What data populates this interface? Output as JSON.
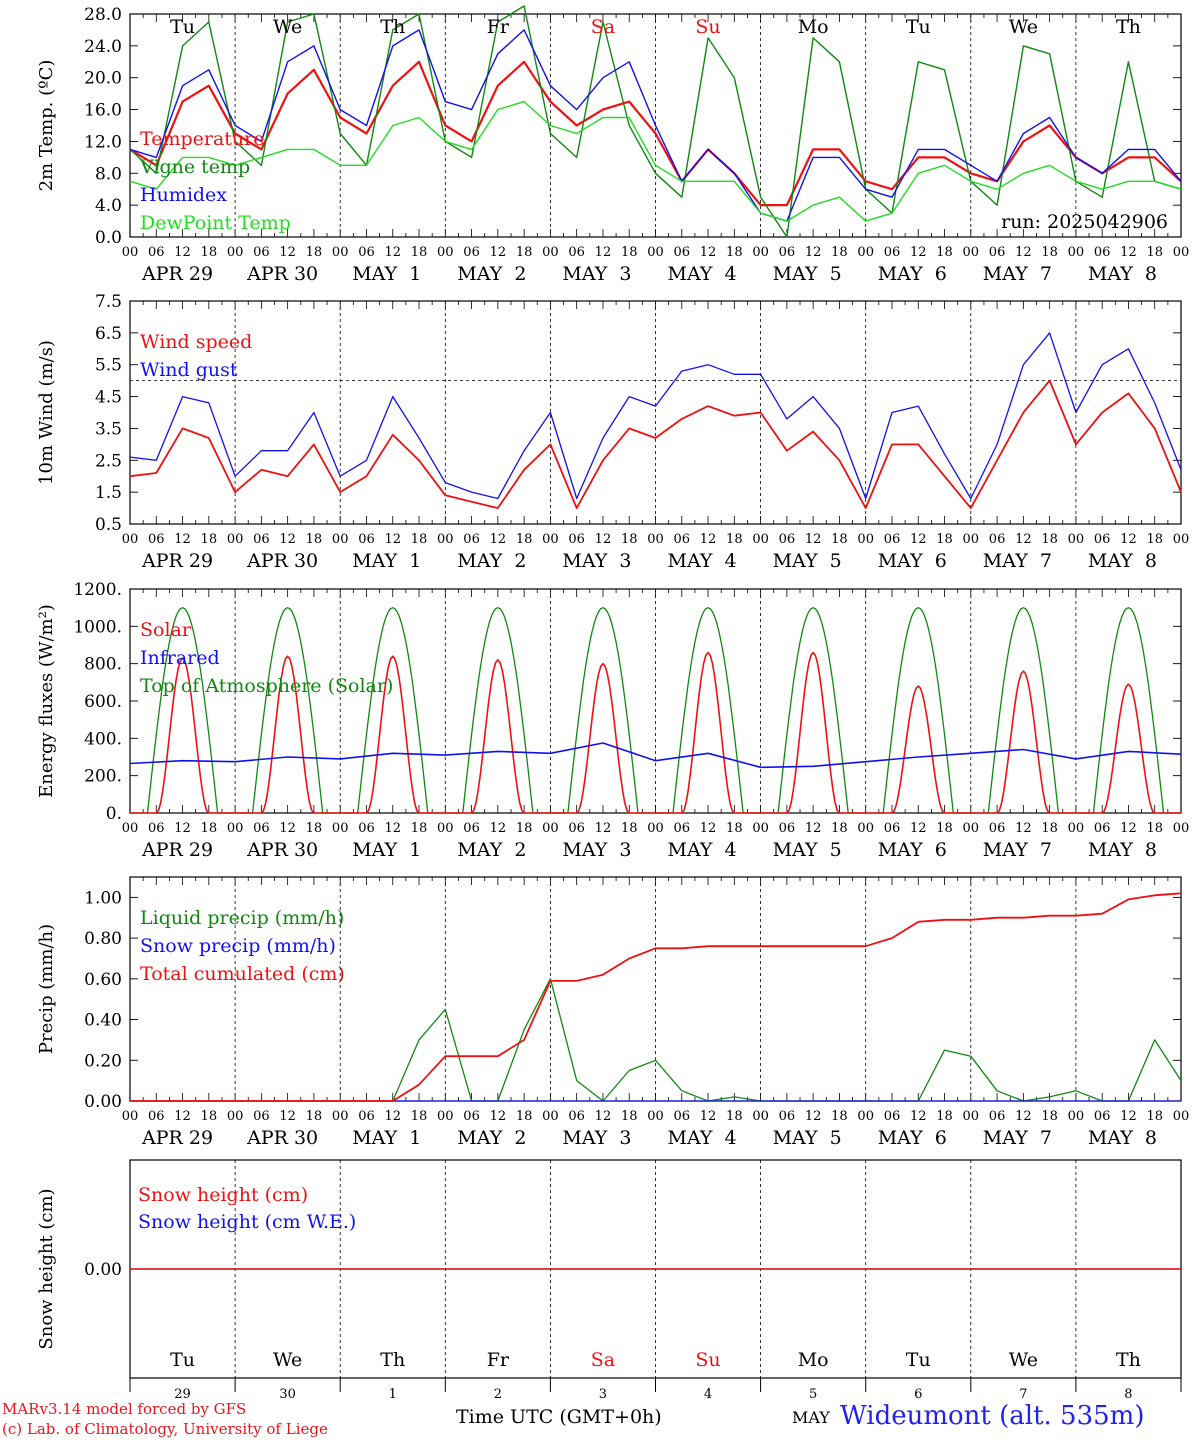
{
  "chart_data": [
    {
      "type": "line",
      "ylabel": "2m Temp. (ºC)",
      "ylim": [
        0,
        28
      ],
      "yticks": [
        "0.0",
        "4.0",
        "8.0",
        "12.0",
        "16.0",
        "20.0",
        "24.0",
        "28.0"
      ],
      "annotation": "run: 2025042906",
      "day_names": [
        "Tu",
        "We",
        "Th",
        "Fr",
        "Sa",
        "Su",
        "Mo",
        "Tu",
        "We",
        "Th"
      ],
      "date_labels": [
        "APR 29",
        "APR 30",
        "MAY  1",
        "MAY  2",
        "MAY  3",
        "MAY  4",
        "MAY  5",
        "MAY  6",
        "MAY  7",
        "MAY  8"
      ],
      "hour_ticks": [
        "00",
        "06",
        "12",
        "18"
      ],
      "x_hours": [
        0,
        6,
        12,
        18,
        24,
        30,
        36,
        42,
        48,
        54,
        60,
        66,
        72,
        78,
        84,
        90,
        96,
        102,
        108,
        114,
        120,
        126,
        132,
        138,
        144,
        150,
        156,
        162,
        168,
        174,
        180,
        186,
        192,
        198,
        204,
        210,
        216,
        222,
        228,
        234,
        240
      ],
      "series": [
        {
          "name": "Temperature",
          "color": "#ee1111",
          "values": [
            11,
            9,
            17,
            19,
            13,
            11,
            18,
            21,
            15,
            13,
            19,
            22,
            14,
            12,
            19,
            22,
            17,
            14,
            16,
            17,
            13,
            7,
            11,
            8,
            4,
            4,
            11,
            11,
            7,
            6,
            10,
            10,
            8,
            7,
            12,
            14,
            10,
            8,
            10,
            10,
            7
          ]
        },
        {
          "name": "Vigne temp",
          "color": "#118811",
          "values": [
            11,
            8,
            24,
            27,
            12,
            9,
            27,
            28,
            13,
            9,
            26,
            28,
            12,
            10,
            27,
            29,
            13,
            10,
            27,
            14,
            8,
            5,
            25,
            20,
            5,
            0,
            25,
            22,
            6,
            3,
            22,
            21,
            7,
            4,
            24,
            23,
            7,
            5,
            22,
            7,
            6
          ]
        },
        {
          "name": "Humidex",
          "color": "#1111ee",
          "values": [
            11,
            10,
            19,
            21,
            14,
            12,
            22,
            24,
            16,
            14,
            24,
            26,
            17,
            16,
            23,
            26,
            19,
            16,
            20,
            22,
            14,
            7,
            11,
            8,
            3,
            2,
            10,
            10,
            6,
            5,
            11,
            11,
            9,
            7,
            13,
            15,
            10,
            8,
            11,
            11,
            7
          ]
        },
        {
          "name": "DewPoint Temp",
          "color": "#22dd22",
          "values": [
            7,
            6,
            10,
            10,
            9,
            10,
            11,
            11,
            9,
            9,
            14,
            15,
            12,
            11,
            16,
            17,
            14,
            13,
            15,
            15,
            9,
            7,
            7,
            7,
            3,
            2,
            4,
            5,
            2,
            3,
            8,
            9,
            7,
            6,
            8,
            9,
            7,
            6,
            7,
            7,
            6
          ]
        }
      ]
    },
    {
      "type": "line",
      "ylabel": "10m Wind (m/s)",
      "ylim": [
        0.5,
        7.5
      ],
      "yticks": [
        "0.5",
        "1.5",
        "2.5",
        "3.5",
        "4.5",
        "5.5",
        "6.5",
        "7.5"
      ],
      "reference_line": 5.0,
      "date_labels": [
        "APR 29",
        "APR 30",
        "MAY  1",
        "MAY  2",
        "MAY  3",
        "MAY  4",
        "MAY  5",
        "MAY  6",
        "MAY  7",
        "MAY  8"
      ],
      "x_hours": [
        0,
        6,
        12,
        18,
        24,
        30,
        36,
        42,
        48,
        54,
        60,
        66,
        72,
        78,
        84,
        90,
        96,
        102,
        108,
        114,
        120,
        126,
        132,
        138,
        144,
        150,
        156,
        162,
        168,
        174,
        180,
        186,
        192,
        198,
        204,
        210,
        216,
        222,
        228,
        234,
        240
      ],
      "series": [
        {
          "name": "Wind speed",
          "color": "#ee1111",
          "values": [
            2.0,
            2.1,
            3.5,
            3.2,
            1.5,
            2.2,
            2.0,
            3.0,
            1.5,
            2.0,
            3.3,
            2.5,
            1.4,
            1.2,
            1.0,
            2.2,
            3.0,
            1.0,
            2.5,
            3.5,
            3.2,
            3.8,
            4.2,
            3.9,
            4.0,
            2.8,
            3.4,
            2.5,
            1.0,
            3.0,
            3.0,
            2.0,
            1.0,
            2.5,
            4.0,
            5.0,
            3.0,
            4.0,
            4.6,
            3.5,
            1.5
          ]
        },
        {
          "name": "Wind gust",
          "color": "#1111ee",
          "values": [
            2.6,
            2.5,
            4.5,
            4.3,
            2.0,
            2.8,
            2.8,
            4.0,
            2.0,
            2.5,
            4.5,
            3.2,
            1.8,
            1.5,
            1.3,
            2.8,
            4.0,
            1.3,
            3.2,
            4.5,
            4.2,
            5.3,
            5.5,
            5.2,
            5.2,
            3.8,
            4.5,
            3.5,
            1.3,
            4.0,
            4.2,
            2.7,
            1.3,
            3.0,
            5.5,
            6.5,
            4.0,
            5.5,
            6.0,
            4.3,
            2.2
          ]
        }
      ]
    },
    {
      "type": "line",
      "ylabel": "Energy fluxes (W/m²)",
      "ylim": [
        0,
        1200
      ],
      "yticks": [
        "0.",
        "200.",
        "400.",
        "600.",
        "800.",
        "1000.",
        "1200."
      ],
      "date_labels": [
        "APR 29",
        "APR 30",
        "MAY  1",
        "MAY  2",
        "MAY  3",
        "MAY  4",
        "MAY  5",
        "MAY  6",
        "MAY  7",
        "MAY  8"
      ],
      "solar_peaks": [
        830,
        840,
        840,
        820,
        800,
        860,
        860,
        680,
        760,
        690
      ],
      "toa_peak": 1100,
      "series": [
        {
          "name": "Solar",
          "color": "#ee1111"
        },
        {
          "name": "Infrared",
          "color": "#1111ee",
          "values": [
            265,
            280,
            275,
            300,
            290,
            320,
            310,
            330,
            320,
            375,
            280,
            320,
            245,
            250,
            275,
            300,
            320,
            340,
            290,
            330,
            315
          ]
        },
        {
          "name": "Top of Atmosphere (Solar)",
          "color": "#118811"
        }
      ]
    },
    {
      "type": "line",
      "ylabel": "Precip (mm/h)",
      "ylim": [
        0,
        1.1
      ],
      "yticks": [
        "0.00",
        "0.20",
        "0.40",
        "0.60",
        "0.80",
        "1.00"
      ],
      "date_labels": [
        "APR 29",
        "APR 30",
        "MAY  1",
        "MAY  2",
        "MAY  3",
        "MAY  4",
        "MAY  5",
        "MAY  6",
        "MAY  7",
        "MAY  8"
      ],
      "x_hours": [
        0,
        6,
        12,
        18,
        24,
        30,
        36,
        42,
        48,
        54,
        60,
        66,
        72,
        78,
        84,
        90,
        96,
        102,
        108,
        114,
        120,
        126,
        132,
        138,
        144,
        150,
        156,
        162,
        168,
        174,
        180,
        186,
        192,
        198,
        204,
        210,
        216,
        222,
        228,
        234,
        240
      ],
      "series": [
        {
          "name": "Liquid precip (mm/h)",
          "color": "#118811",
          "values": [
            0,
            0,
            0,
            0,
            0,
            0,
            0,
            0,
            0,
            0,
            0,
            0.3,
            0.45,
            0,
            0,
            0.35,
            0.6,
            0.1,
            0,
            0.15,
            0.2,
            0.05,
            0,
            0.02,
            0,
            0,
            0,
            0,
            0,
            0,
            0,
            0.25,
            0.22,
            0.05,
            0,
            0.02,
            0.05,
            0,
            0,
            0.3,
            0.1
          ]
        },
        {
          "name": "Snow precip (mm/h)",
          "color": "#1111ee",
          "values": [
            0,
            0,
            0,
            0,
            0,
            0,
            0,
            0,
            0,
            0,
            0,
            0,
            0,
            0,
            0,
            0,
            0,
            0,
            0,
            0,
            0,
            0,
            0,
            0,
            0,
            0,
            0,
            0,
            0,
            0,
            0,
            0,
            0,
            0,
            0,
            0,
            0,
            0,
            0,
            0,
            0
          ]
        },
        {
          "name": "Total cumulated (cm)",
          "color": "#ee1111",
          "values": [
            0,
            0,
            0,
            0,
            0,
            0,
            0,
            0,
            0,
            0,
            0,
            0.08,
            0.22,
            0.22,
            0.22,
            0.3,
            0.59,
            0.59,
            0.62,
            0.7,
            0.75,
            0.75,
            0.76,
            0.76,
            0.76,
            0.76,
            0.76,
            0.76,
            0.76,
            0.8,
            0.88,
            0.89,
            0.89,
            0.9,
            0.9,
            0.91,
            0.91,
            0.92,
            0.99,
            1.01,
            1.02
          ]
        }
      ]
    },
    {
      "type": "line",
      "ylabel": "Snow height (cm)",
      "yticks": [
        "0.00"
      ],
      "day_names": [
        "Tu",
        "We",
        "Th",
        "Fr",
        "Sa",
        "Su",
        "Mo",
        "Tu",
        "We",
        "Th"
      ],
      "day_numbers": [
        "29",
        "30",
        "1",
        "2",
        "3",
        "4",
        "5",
        "6",
        "7",
        "8"
      ],
      "series": [
        {
          "name": "Snow height (cm)",
          "color": "#ee1111",
          "values": [
            0,
            0
          ]
        },
        {
          "name": "Snow height (cm W.E.)",
          "color": "#1111ee",
          "values": [
            0,
            0
          ]
        }
      ]
    }
  ],
  "footer": {
    "model_line": "MARv3.14 model forced by GFS",
    "copyright_line": "(c) Lab. of Climatology, University of Liege",
    "time_label": "Time UTC (GMT+0h)",
    "month_label": "MAY",
    "station": "Wideumont (alt. 535m)"
  },
  "colors": {
    "weekend": "#ee1111",
    "weekday": "#000000",
    "station": "#2222ee"
  }
}
